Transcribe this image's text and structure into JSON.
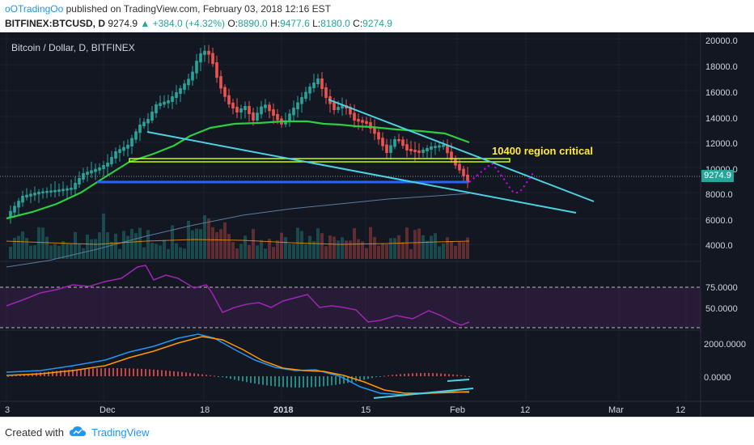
{
  "header": {
    "author": "oOTradingOo",
    "published": "published on TradingView.com, February 03, 2018 12:16 EST",
    "symbol": "BITFINEX:BTCUSD, D",
    "last": "9274.9",
    "change": "▲ +384.0 (+4.32%)",
    "o_label": "O:",
    "o": "8890.0",
    "h_label": "H:",
    "h": "9477.6",
    "l_label": "L:",
    "l": "8180.0",
    "c_label": "C:",
    "c": "9274.9"
  },
  "chart": {
    "title": "Bitcoin / Dollar, D, BITFINEX",
    "annotation": "10400 region critical",
    "last_price_tag": "9274.9",
    "price_axis": [
      "20000.0",
      "18000.0",
      "16000.0",
      "14000.0",
      "12000.0",
      "10000.0",
      "8000.0",
      "6000.0",
      "4000.0"
    ],
    "rsi_axis": [
      "75.0000",
      "50.0000"
    ],
    "macd_axis": [
      "2000.0000",
      "0.0000"
    ],
    "time_axis": [
      "3",
      "Dec",
      "18",
      "2018",
      "15",
      "Feb",
      "12",
      "Mar",
      "12"
    ],
    "colors": {
      "background": "#131722",
      "up": "#26a69a",
      "down": "#ef5350",
      "ma": "#2ecc40",
      "trendline": "#4dd0e1",
      "support_band": "#c6ff00",
      "rsi": "#9c27b0",
      "annotation": "#ffeb3b"
    }
  },
  "footer": {
    "created_with": "Created with",
    "brand": "TradingView"
  }
}
